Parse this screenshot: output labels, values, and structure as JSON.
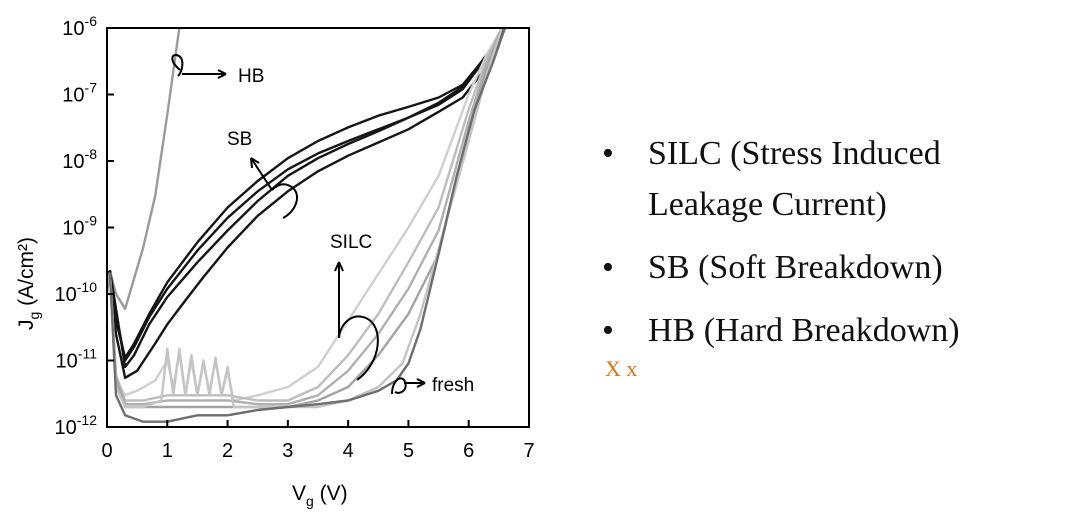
{
  "chart_data": {
    "type": "line",
    "xlabel": "V",
    "xlabel_sub": "g",
    "xlabel_unit": " (V)",
    "ylabel_main": "J",
    "ylabel_sub": "g",
    "ylabel_unit": " (A/cm²)",
    "xlim": [
      0,
      7
    ],
    "ylim_log10": [
      -12,
      -6
    ],
    "y_scale": "log",
    "grid": false,
    "x_ticks": [
      "0",
      "1",
      "2",
      "3",
      "4",
      "5",
      "6",
      "7"
    ],
    "y_ticks": [
      {
        "base": "10",
        "exp": "-6"
      },
      {
        "base": "10",
        "exp": "-7"
      },
      {
        "base": "10",
        "exp": "-8"
      },
      {
        "base": "10",
        "exp": "-9"
      },
      {
        "base": "10",
        "exp": "-10"
      },
      {
        "base": "10",
        "exp": "-11"
      },
      {
        "base": "10",
        "exp": "-12"
      }
    ],
    "annotations": {
      "hb": "HB",
      "sb": "SB",
      "silc": "SILC",
      "fresh": "fresh"
    },
    "series": [
      {
        "color": "#9a9a9a",
        "x": [
          0,
          0.05,
          0.15,
          0.3,
          0.4,
          0.6,
          0.8,
          1.0,
          1.2
        ],
        "y": [
          1e-10,
          2.2e-10,
          1e-10,
          6e-11,
          1.2e-10,
          5e-10,
          3e-09,
          5e-08,
          1e-06
        ]
      },
      {
        "color": "#151515",
        "x": [
          0,
          0.05,
          0.15,
          0.3,
          0.45,
          0.7,
          1.0,
          1.5,
          2.0,
          2.5,
          3.0,
          3.5,
          4.0,
          4.5,
          5.0,
          5.5,
          5.9,
          6.2,
          6.5,
          6.6
        ],
        "y": [
          2e-10,
          2.2e-10,
          6e-11,
          8e-12,
          1.2e-11,
          3.5e-11,
          9e-11,
          3e-10,
          9e-10,
          2.5e-09,
          6e-09,
          1.1e-08,
          1.8e-08,
          2.8e-08,
          4.5e-08,
          7.5e-08,
          1.3e-07,
          3e-07,
          7e-07,
          1e-06
        ]
      },
      {
        "color": "#151515",
        "x": [
          0,
          0.05,
          0.15,
          0.3,
          0.45,
          0.7,
          1.0,
          1.5,
          2.0,
          2.5,
          3.0,
          3.5,
          4.0,
          4.5,
          5.0,
          5.5,
          5.9,
          6.2,
          6.5,
          6.6
        ],
        "y": [
          2e-10,
          2.2e-10,
          5e-11,
          1e-11,
          1.6e-11,
          4.5e-11,
          1.2e-10,
          4.5e-10,
          1.4e-09,
          3.5e-09,
          7.5e-09,
          1.3e-08,
          2e-08,
          3e-08,
          4.5e-08,
          7e-08,
          1.2e-07,
          2.8e-07,
          7e-07,
          1e-06
        ]
      },
      {
        "color": "#151515",
        "x": [
          0,
          0.05,
          0.15,
          0.3,
          0.45,
          0.7,
          1.0,
          1.5,
          2.0,
          2.5,
          3.0,
          3.5,
          4.0,
          4.5,
          5.0,
          5.5,
          5.9,
          6.2,
          6.5,
          6.6
        ],
        "y": [
          2e-10,
          2.2e-10,
          4e-11,
          1.1e-11,
          1.8e-11,
          5e-11,
          1.5e-10,
          6e-10,
          2e-09,
          5e-09,
          1.1e-08,
          2e-08,
          3.2e-08,
          4.8e-08,
          6.5e-08,
          9e-08,
          1.4e-07,
          3e-07,
          7e-07,
          1e-06
        ]
      },
      {
        "color": "#151515",
        "x": [
          0,
          0.05,
          0.15,
          0.3,
          0.5,
          0.8,
          1.0,
          1.3,
          1.6,
          2.0,
          2.5,
          3.0,
          3.5,
          4.0,
          4.5,
          5.0,
          5.5,
          5.9,
          6.2,
          6.5,
          6.6
        ],
        "y": [
          2e-10,
          2.2e-10,
          2.5e-11,
          5.5e-12,
          7e-12,
          1.8e-11,
          3.5e-11,
          8e-11,
          1.8e-10,
          5e-10,
          1.5e-09,
          3.5e-09,
          7e-09,
          1.2e-08,
          1.9e-08,
          3e-08,
          5.5e-08,
          9e-08,
          2e-07,
          6e-07,
          1e-06
        ]
      },
      {
        "color": "#cfcfcf",
        "x": [
          0,
          0.05,
          0.15,
          0.3,
          0.5,
          0.8,
          1.0,
          1.1,
          1.2,
          1.3,
          1.4,
          1.5,
          1.6,
          1.7,
          1.8,
          1.9,
          2.0,
          2.1,
          2.5,
          3.0,
          3.5,
          4.0,
          4.5,
          5.0,
          5.5,
          6.0,
          6.3,
          6.55
        ],
        "y": [
          2e-10,
          2e-10,
          5e-12,
          3e-12,
          3.5e-12,
          5e-12,
          1e-11,
          4e-12,
          1.3e-11,
          3e-12,
          1e-11,
          3e-12,
          9e-12,
          3.5e-12,
          1e-11,
          3e-12,
          7e-12,
          2.5e-12,
          3e-12,
          4e-12,
          8e-12,
          4e-11,
          2e-10,
          1e-09,
          6e-09,
          1e-07,
          4e-07,
          1e-06
        ]
      },
      {
        "color": "#bdbdbd",
        "x": [
          0,
          0.05,
          0.15,
          0.3,
          0.6,
          1.0,
          1.5,
          2.0,
          2.5,
          3.0,
          3.5,
          4.0,
          4.5,
          5.0,
          5.5,
          6.0,
          6.3,
          6.55
        ],
        "y": [
          2e-10,
          2e-10,
          6e-12,
          2.5e-12,
          2.5e-12,
          3e-12,
          3e-12,
          3e-12,
          2.5e-12,
          2.5e-12,
          4e-12,
          1.2e-11,
          5e-11,
          3e-10,
          2e-09,
          6e-08,
          3.5e-07,
          1e-06
        ]
      },
      {
        "color": "#b0b0b0",
        "x": [
          0,
          0.05,
          0.15,
          0.3,
          0.6,
          1.0,
          1.5,
          2.0,
          2.5,
          3.0,
          3.5,
          4.0,
          4.5,
          5.0,
          5.5,
          6.0,
          6.3,
          6.55
        ],
        "y": [
          2e-10,
          2e-10,
          6e-12,
          2.2e-12,
          2.2e-12,
          2.5e-12,
          2.5e-12,
          2.5e-12,
          2.2e-12,
          2.2e-12,
          3e-12,
          7e-12,
          2.5e-11,
          1.2e-10,
          9e-10,
          4e-08,
          3e-07,
          1e-06
        ]
      },
      {
        "color": "#a3a3a3",
        "x": [
          0,
          0.05,
          0.15,
          0.3,
          0.6,
          1.0,
          1.5,
          2.0,
          2.5,
          3.0,
          3.5,
          4.0,
          4.5,
          5.0,
          5.5,
          6.0,
          6.3,
          6.55
        ],
        "y": [
          2e-10,
          2e-10,
          5e-12,
          2e-12,
          2e-12,
          2e-12,
          2e-12,
          2e-12,
          2e-12,
          2e-12,
          2.5e-12,
          4e-12,
          1.2e-11,
          5e-11,
          4e-10,
          3e-08,
          2.5e-07,
          1e-06
        ]
      },
      {
        "color": "#c4c4c4",
        "x": [
          0,
          0.05,
          0.15,
          0.3,
          0.6,
          0.9,
          1.0,
          1.1,
          1.2,
          1.3,
          1.4,
          1.5,
          1.6,
          1.7,
          1.8,
          1.9,
          2.0,
          2.1,
          2.5,
          3.0,
          3.5,
          4.0,
          4.5,
          4.9,
          5.2,
          5.6,
          6.0,
          6.3,
          6.55
        ],
        "y": [
          2e-10,
          2e-10,
          4e-12,
          2e-12,
          2e-12,
          2.5e-12,
          1.5e-11,
          3e-12,
          1.5e-11,
          3e-12,
          1.2e-11,
          3e-12,
          1e-11,
          3e-12,
          1.1e-11,
          3e-12,
          8e-12,
          2e-12,
          2e-12,
          2e-12,
          2e-12,
          2.5e-12,
          4e-12,
          9e-12,
          5e-11,
          1e-09,
          2e-08,
          2e-07,
          1e-06
        ]
      },
      {
        "color": "#6e6e6e",
        "x": [
          0,
          0.05,
          0.15,
          0.3,
          0.6,
          1.0,
          1.5,
          2.0,
          2.5,
          3.0,
          3.5,
          4.0,
          4.5,
          4.8,
          5.0,
          5.2,
          5.5,
          5.8,
          6.1,
          6.4,
          6.6
        ],
        "y": [
          2e-10,
          2e-10,
          3e-12,
          1.5e-12,
          1.2e-12,
          1.2e-12,
          1.5e-12,
          1.5e-12,
          1.8e-12,
          2e-12,
          2.2e-12,
          2.5e-12,
          3.5e-12,
          5e-12,
          9e-12,
          3e-11,
          4e-10,
          6e-09,
          6e-08,
          3e-07,
          1e-06
        ]
      }
    ]
  },
  "bullets": {
    "marker": "•",
    "items": [
      {
        "line1": "SILC (Stress Induced",
        "line2": "Leakage Current)"
      },
      {
        "line1": "SB (Soft Breakdown)"
      },
      {
        "line1": "HB (Hard Breakdown)"
      }
    ]
  },
  "note": "X x"
}
